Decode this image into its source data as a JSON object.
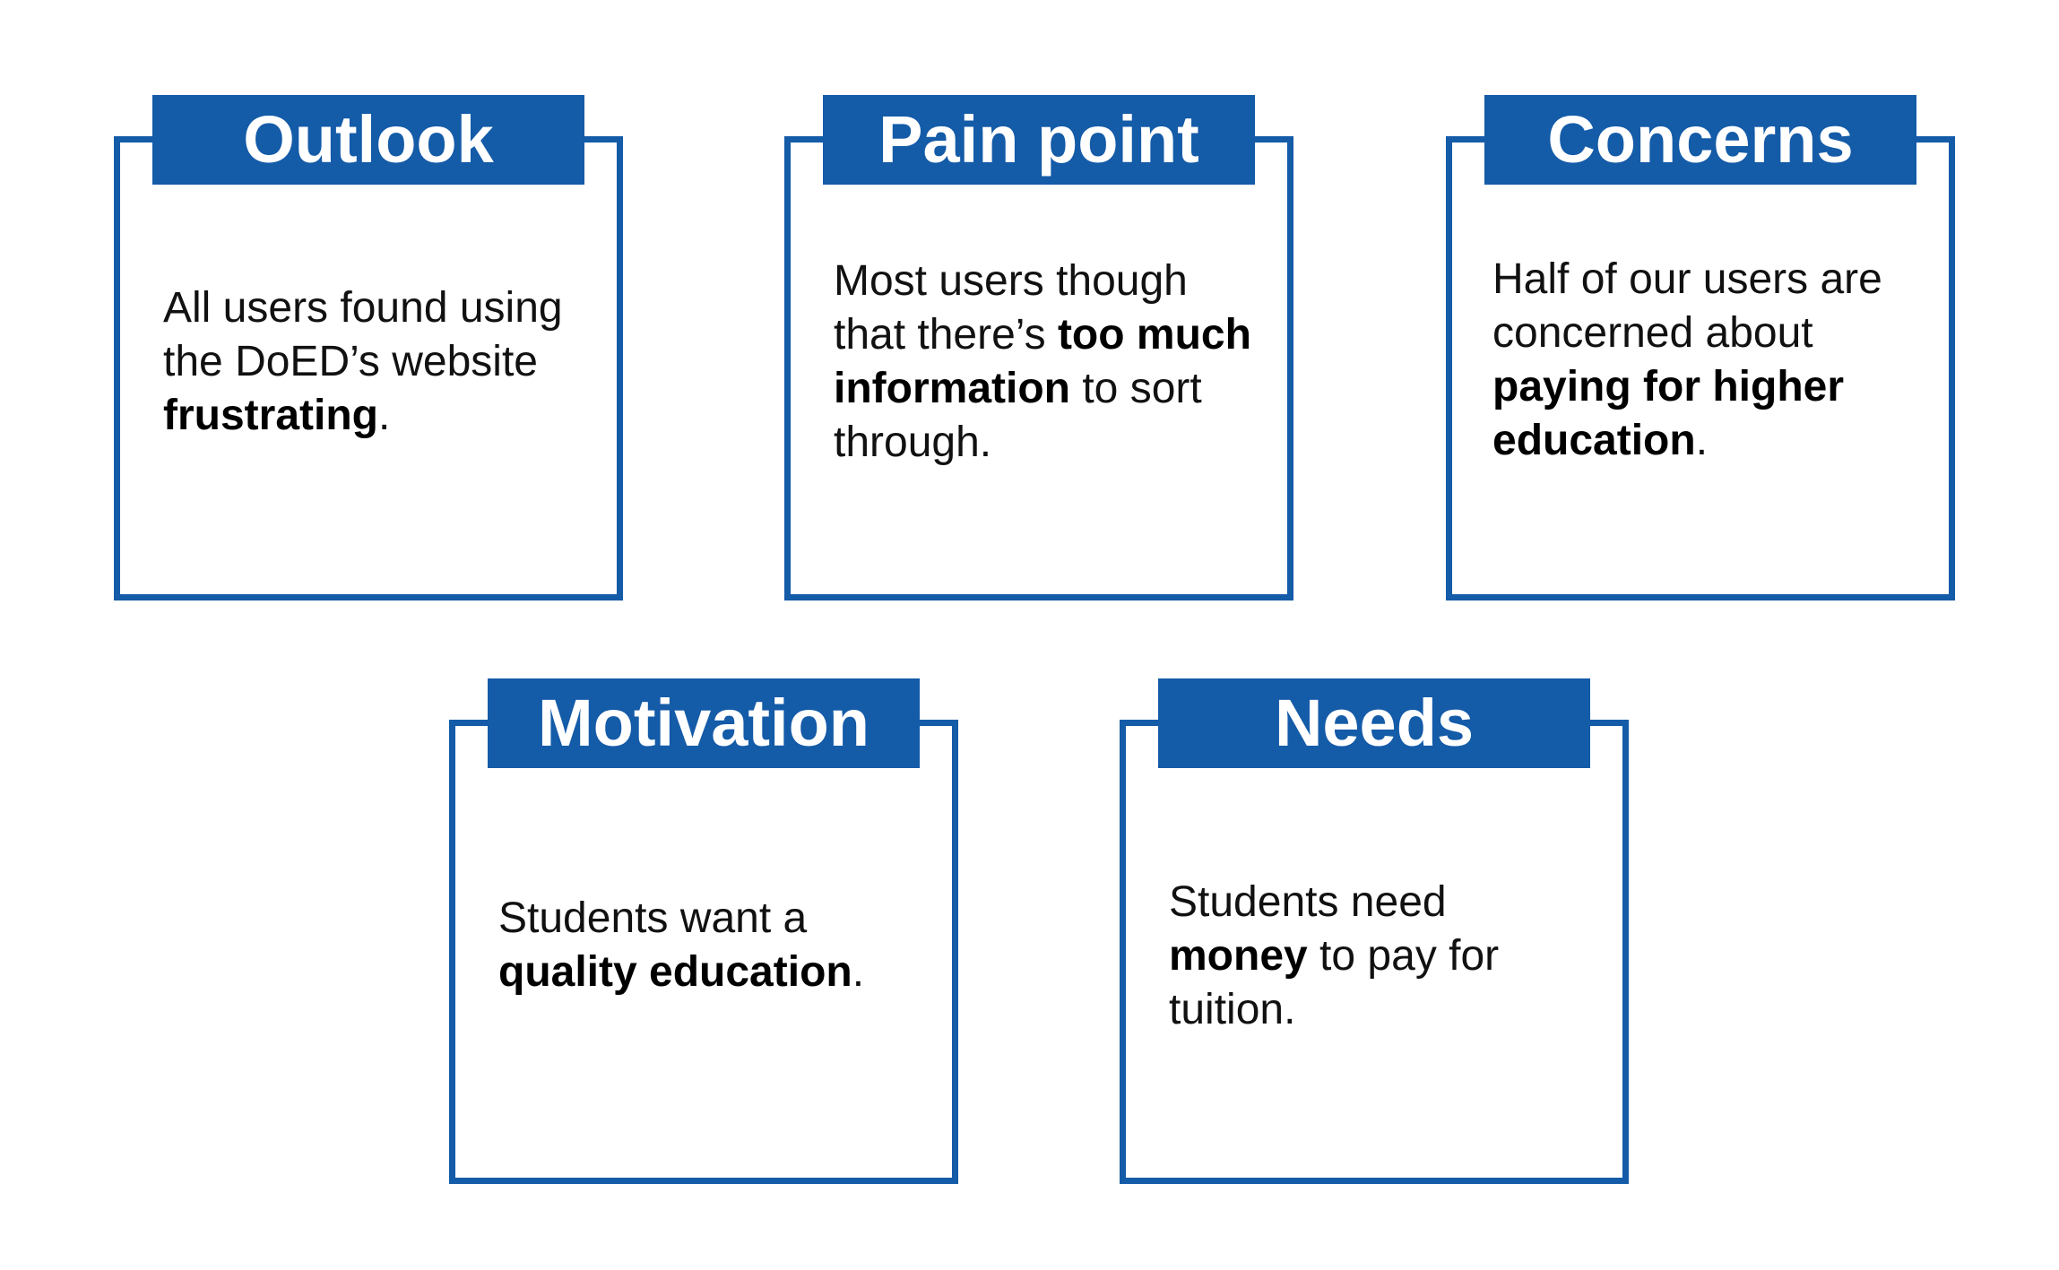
{
  "colors": {
    "accent": "#145ba8",
    "text": "#111111",
    "background": "#ffffff"
  },
  "cards": [
    {
      "title": "Outlook",
      "text_parts": [
        {
          "text": "All users found using the DoED’s website ",
          "bold": false
        },
        {
          "text": "frustrating",
          "bold": true
        },
        {
          "text": ".",
          "bold": false
        }
      ]
    },
    {
      "title": "Pain point",
      "text_parts": [
        {
          "text": "Most users though that there’s ",
          "bold": false
        },
        {
          "text": "too much information",
          "bold": true
        },
        {
          "text": " to sort through.",
          "bold": false
        }
      ]
    },
    {
      "title": "Concerns",
      "text_parts": [
        {
          "text": "Half of our users are concerned about ",
          "bold": false
        },
        {
          "text": "paying for higher education",
          "bold": true
        },
        {
          "text": ".",
          "bold": false
        }
      ]
    },
    {
      "title": "Motivation",
      "text_parts": [
        {
          "text": "Students want a ",
          "bold": false
        },
        {
          "text": "quality education",
          "bold": true
        },
        {
          "text": ".",
          "bold": false
        }
      ]
    },
    {
      "title": "Needs",
      "text_parts": [
        {
          "text": "Students need ",
          "bold": false
        },
        {
          "text": "money",
          "bold": true
        },
        {
          "text": " to pay for tuition.",
          "bold": false
        }
      ]
    }
  ]
}
